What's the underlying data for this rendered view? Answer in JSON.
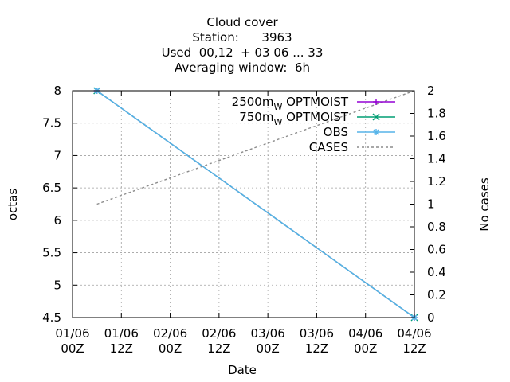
{
  "chart_data": {
    "type": "line",
    "title_lines": [
      "Cloud cover",
      "Station:      3963",
      "Used  00,12  + 03 06 ... 33",
      "Averaging window:  6h"
    ],
    "xlabel": "Date",
    "ylabel": "octas",
    "y2label": "No cases",
    "x_ticks": [
      {
        "line1": "01/06",
        "line2": "00Z",
        "hour": 0
      },
      {
        "line1": "01/06",
        "line2": "12Z",
        "hour": 12
      },
      {
        "line1": "02/06",
        "line2": "00Z",
        "hour": 24
      },
      {
        "line1": "02/06",
        "line2": "12Z",
        "hour": 36
      },
      {
        "line1": "03/06",
        "line2": "00Z",
        "hour": 48
      },
      {
        "line1": "03/06",
        "line2": "12Z",
        "hour": 60
      },
      {
        "line1": "04/06",
        "line2": "00Z",
        "hour": 72
      },
      {
        "line1": "04/06",
        "line2": "12Z",
        "hour": 84
      }
    ],
    "xlim_hours": [
      0,
      84
    ],
    "ylim": [
      4.5,
      8
    ],
    "y_ticks": [
      "4.5",
      "5",
      "5.5",
      "6",
      "6.5",
      "7",
      "7.5",
      "8"
    ],
    "y2lim": [
      0,
      2
    ],
    "y2_ticks": [
      "0",
      "0.2",
      "0.4",
      "0.6",
      "0.8",
      "1",
      "1.2",
      "1.4",
      "1.6",
      "1.8",
      "2"
    ],
    "grid": true,
    "legend_position": "top-right",
    "series": [
      {
        "name": "2500m",
        "name_sub": "W",
        "name_rest": " OPTMOIST",
        "color": "#9400d3",
        "marker": "plus",
        "axis": "y",
        "x_hours": [
          6,
          84
        ],
        "values": [
          8,
          4.5
        ]
      },
      {
        "name": "750m",
        "name_sub": "W",
        "name_rest": " OPTMOIST",
        "color": "#009e73",
        "marker": "x",
        "axis": "y",
        "x_hours": [
          6,
          84
        ],
        "values": [
          8,
          4.5
        ]
      },
      {
        "name": "OBS",
        "color": "#56b4e9",
        "marker": "star",
        "axis": "y",
        "x_hours": [
          6,
          84
        ],
        "values": [
          8,
          4.5
        ]
      },
      {
        "name": "CASES",
        "color": "#8c8c8c",
        "marker": "none",
        "dashed": true,
        "axis": "y2",
        "x_hours": [
          6,
          84
        ],
        "values": [
          1,
          2
        ]
      }
    ]
  }
}
